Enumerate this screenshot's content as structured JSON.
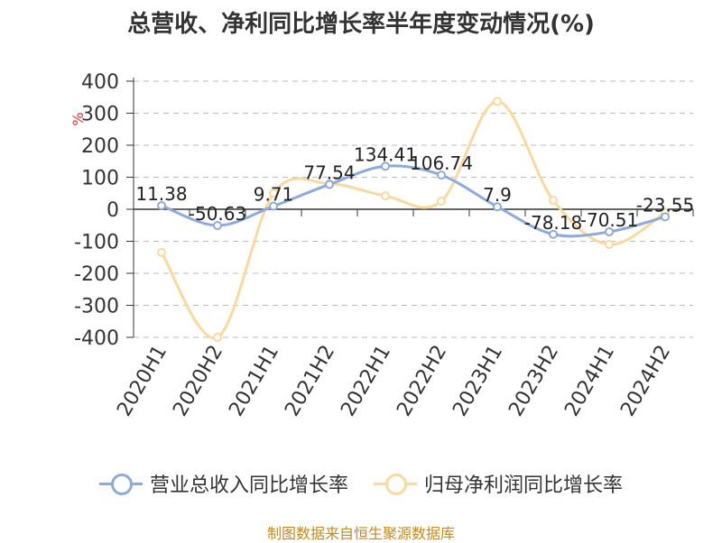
{
  "chart_data": {
    "type": "line",
    "title": "总营收、净利同比增长率半年度变动情况(%)",
    "ylabel": "%",
    "categories": [
      "2020H1",
      "2020H2",
      "2021H1",
      "2021H2",
      "2022H1",
      "2022H2",
      "2023H1",
      "2023H2",
      "2024H1",
      "2024H2"
    ],
    "ylim": [
      -400,
      400
    ],
    "yticks": [
      400,
      300,
      200,
      100,
      0,
      -100,
      -200,
      -300,
      -400
    ],
    "grid": true,
    "legend_position": "bottom",
    "series": [
      {
        "name": "营业总收入同比增长率",
        "color": "#8eaadb",
        "values": [
          11.38,
          -50.63,
          9.71,
          77.54,
          134.41,
          106.74,
          7.9,
          -78.18,
          -70.51,
          -23.55
        ],
        "labels": [
          "11.38",
          "-50.63",
          "9.71",
          "77.54",
          "134.41",
          "106.74",
          "7.9",
          "-78.18",
          "-70.51",
          "-23.55"
        ]
      },
      {
        "name": "归母净利润同比增长率",
        "color": "#fad9a0",
        "values": [
          -135,
          -400,
          50,
          80,
          42,
          25,
          337,
          28,
          -110,
          -10
        ],
        "labels": []
      }
    ]
  },
  "footer": {
    "source": "制图数据来自恒生聚源数据库"
  }
}
